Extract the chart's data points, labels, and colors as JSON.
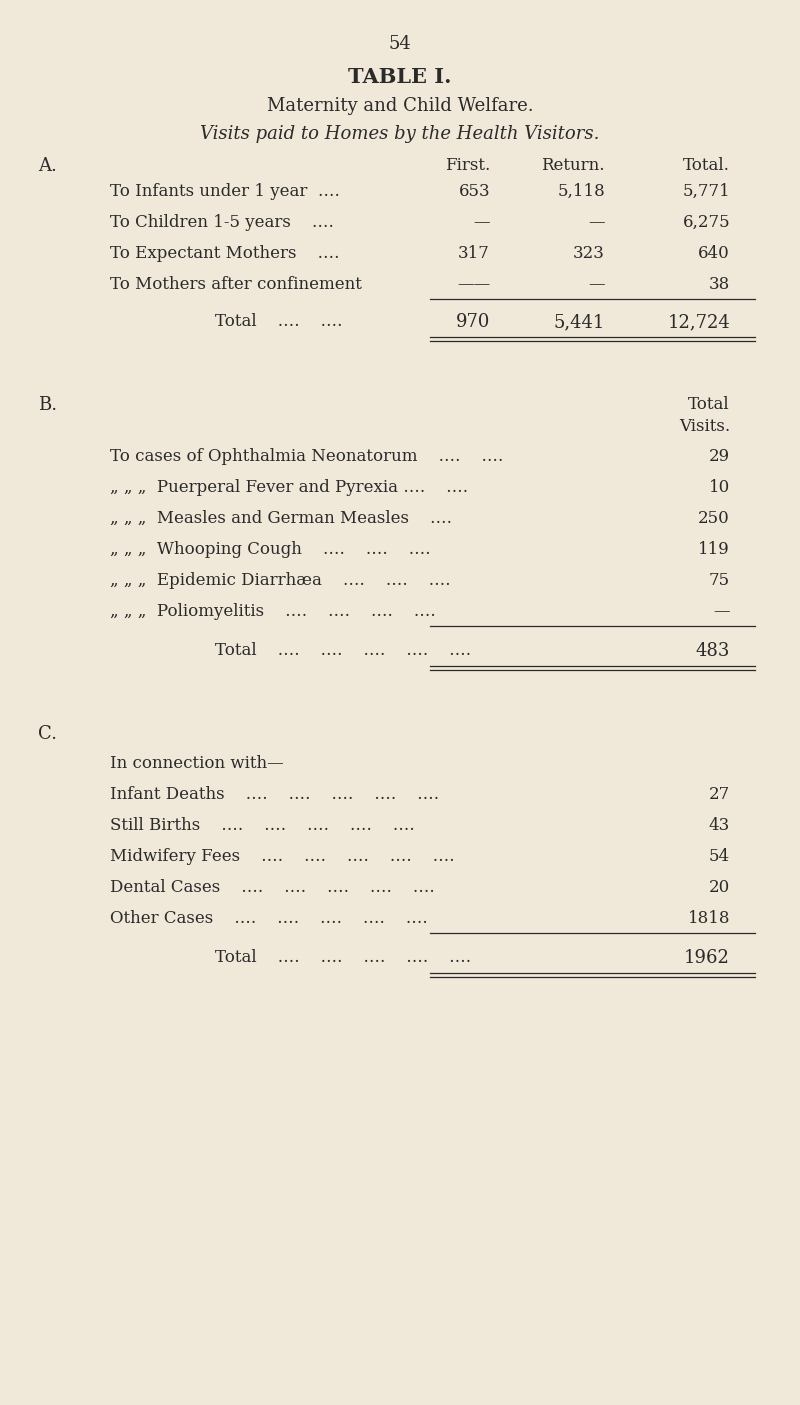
{
  "bg_color": "#f0e8d8",
  "text_color": "#2a2a2a",
  "page_number": "54",
  "title": "TABLE I.",
  "subtitle": "Maternity and Child Welfare.",
  "subtitle2": "Visits paid to Homes by the Health Visitors.",
  "section_a_label": "A.",
  "col_headers": [
    "First.",
    "Return.",
    "Total."
  ],
  "section_a_rows": [
    {
      "label": "To Infants under 1 year  ….",
      "first": "653",
      "return": "5,118",
      "total": "5,771"
    },
    {
      "label": "To Children 1-5 years    ….",
      "first": "—",
      "return": "—",
      "total": "6,275"
    },
    {
      "label": "To Expectant Mothers    ….",
      "first": "317",
      "return": "323",
      "total": "640"
    },
    {
      "label": "To Mothers after confinement",
      "first": "——",
      "return": "—",
      "total": "38"
    }
  ],
  "section_a_total_label": "Total    ….    ….",
  "section_a_total": [
    "970",
    "5,441",
    "12,724"
  ],
  "section_b_label": "B.",
  "section_b_col_header_line1": "Total",
  "section_b_col_header_line2": "Visits.",
  "section_b_rows": [
    {
      "label": "To cases of Ophthalmia Neonatorum    ….    ….",
      "value": "29"
    },
    {
      "„„„": true,
      "label": "„ „ „  Puerperal Fever and Pyrexia ….    ….",
      "value": "10"
    },
    {
      "„„„": true,
      "label": "„ „ „  Measles and German Measles    ….",
      "value": "250"
    },
    {
      "„„„": true,
      "label": "„ „ „  Whooping Cough    ….    ….    ….",
      "value": "119"
    },
    {
      "„„„": true,
      "label": "„ „ „  Epidemic Diarrhæa    ….    ….    ….",
      "value": "75"
    },
    {
      "„„„": true,
      "label": "„ „ „  Poliomyelitis    ….    ….    ….    ….",
      "value": "—"
    }
  ],
  "section_b_total_label": "Total    ….    ….    ….    ….    ….",
  "section_b_total": "483",
  "section_c_label": "C.",
  "section_c_intro": "In connection with—",
  "section_c_rows": [
    {
      "label": "Infant Deaths    ….    ….    ….    ….    ….",
      "value": "27"
    },
    {
      "label": "Still Births    ….    ….    ….    ….    ….",
      "value": "43"
    },
    {
      "label": "Midwifery Fees    ….    ….    ….    ….    ….",
      "value": "54"
    },
    {
      "label": "Dental Cases    ….    ….    ….    ….    ….",
      "value": "20"
    },
    {
      "label": "Other Cases    ….    ….    ….    ….    ….",
      "value": "1818"
    }
  ],
  "section_c_total_label": "Total    ….    ….    ….    ….    ….",
  "section_c_total": "1962"
}
